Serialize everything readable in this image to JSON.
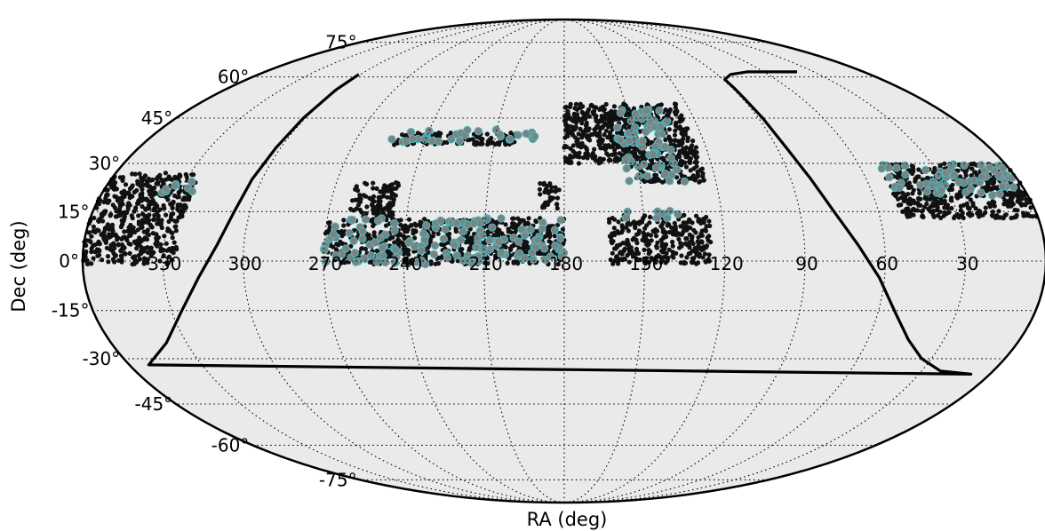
{
  "chart_data": {
    "type": "scatter",
    "projection": "mollweide",
    "xlabel": "RA (deg)",
    "ylabel": "Dec (deg)",
    "grid": true,
    "background_color": "#eaeaea",
    "ra_tick_values": [
      330,
      300,
      270,
      240,
      210,
      180,
      150,
      120,
      90,
      60,
      30
    ],
    "ra_tick_labels": [
      "330",
      "300",
      "270",
      "240",
      "210",
      "180",
      "150",
      "120",
      "90",
      "60",
      "30"
    ],
    "dec_tick_values": [
      75,
      60,
      45,
      30,
      15,
      0,
      -15,
      -30,
      -45,
      -60,
      -75
    ],
    "dec_tick_labels": [
      "75°",
      "60°",
      "45°",
      "30°",
      "15°",
      "0°",
      "-15°",
      "-30°",
      "-45°",
      "-60°",
      "-75°"
    ],
    "series": [
      {
        "marker_color": "#111111",
        "regions": [
          {
            "ra": [
              253,
              201
            ],
            "dec": [
              36,
              40
            ]
          },
          {
            "ra": [
              262,
              245
            ],
            "dec": [
              13,
              24
            ]
          },
          {
            "ra": [
              190,
              182
            ],
            "dec": [
              16,
              24
            ]
          },
          {
            "ra": [
              270,
              180
            ],
            "dec": [
              -1,
              13
            ]
          },
          {
            "ra": [
              163,
              125
            ],
            "dec": [
              -1,
              14
            ]
          },
          {
            "ra": [
              180,
              153
            ],
            "dec": [
              30,
              50
            ]
          },
          {
            "ra": [
              153,
              124
            ],
            "dec": [
              24,
              50
            ]
          },
          {
            "ra": [
              360,
              325
            ],
            "dec": [
              -1,
              27
            ]
          },
          {
            "ra": [
              52,
              0
            ],
            "dec": [
              13,
              30
            ]
          }
        ]
      },
      {
        "marker_color": "#808080",
        "edge_color": "#3cc0c8",
        "regions": [
          {
            "ra": [
              270,
              180
            ],
            "dec": [
              -1,
              13
            ]
          },
          {
            "ra": [
              255,
              192
            ],
            "dec": [
              37,
              41
            ]
          },
          {
            "ra": [
              157,
              132
            ],
            "dec": [
              24,
              48
            ]
          },
          {
            "ra": [
              158,
              135
            ],
            "dec": [
              13,
              16
            ]
          },
          {
            "ra": [
              337,
              325
            ],
            "dec": [
              20,
              26
            ]
          },
          {
            "ra": [
              52,
              0
            ],
            "dec": [
              20,
              30
            ]
          }
        ]
      }
    ],
    "boundary_curve": {
      "ra": [
        301,
        301,
        301,
        302,
        304,
        306,
        310,
        317,
        326,
        338,
        352,
        8,
        22,
        34,
        44,
        53,
        62,
        70,
        77,
        82,
        86,
        88,
        89,
        89,
        89,
        82,
        70,
        60,
        52,
        40
      ],
      "dec": [
        61,
        55,
        45,
        35,
        25,
        15,
        5,
        -5,
        -15,
        -25,
        -32,
        -35,
        -34,
        -30,
        -24,
        -16,
        -5,
        5,
        15,
        25,
        35,
        45,
        52,
        56,
        59,
        61,
        62,
        62,
        62,
        62
      ]
    }
  }
}
